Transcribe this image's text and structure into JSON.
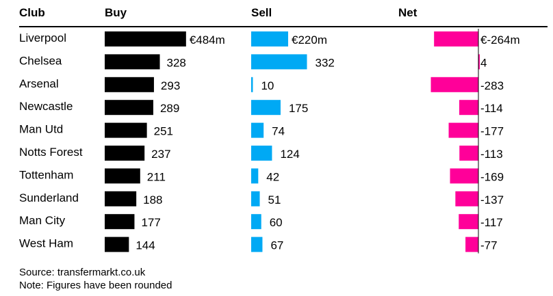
{
  "headers": {
    "club": "Club",
    "buy": "Buy",
    "sell": "Sell",
    "net": "Net"
  },
  "chart_data": {
    "type": "bar",
    "categories": [
      "Liverpool",
      "Chelsea",
      "Arsenal",
      "Newcastle",
      "Man Utd",
      "Notts Forest",
      "Tottenham",
      "Sunderland",
      "Man City",
      "West Ham"
    ],
    "series": [
      {
        "name": "Buy",
        "values": [
          484,
          328,
          293,
          289,
          251,
          237,
          211,
          188,
          177,
          144
        ],
        "labels": [
          "€484m",
          "328",
          "293",
          "289",
          "251",
          "237",
          "211",
          "188",
          "177",
          "144"
        ]
      },
      {
        "name": "Sell",
        "values": [
          220,
          332,
          10,
          175,
          74,
          124,
          42,
          51,
          60,
          67
        ],
        "labels": [
          "€220m",
          "332",
          "10",
          "175",
          "74",
          "124",
          "42",
          "51",
          "60",
          "67"
        ]
      },
      {
        "name": "Net",
        "values": [
          -264,
          4,
          -283,
          -114,
          -177,
          -113,
          -169,
          -137,
          -117,
          -77
        ],
        "labels": [
          "€-264m",
          "4",
          "-283",
          "-114",
          "-177",
          "-113",
          "-169",
          "-137",
          "-117",
          "-77"
        ]
      }
    ],
    "unit": "€m",
    "colors": {
      "buy": "#000000",
      "sell": "#00a9f4",
      "net": "#ff0099"
    }
  },
  "footer": {
    "source": "Source: transfermarkt.co.uk",
    "note": "Note: Figures have been rounded"
  }
}
